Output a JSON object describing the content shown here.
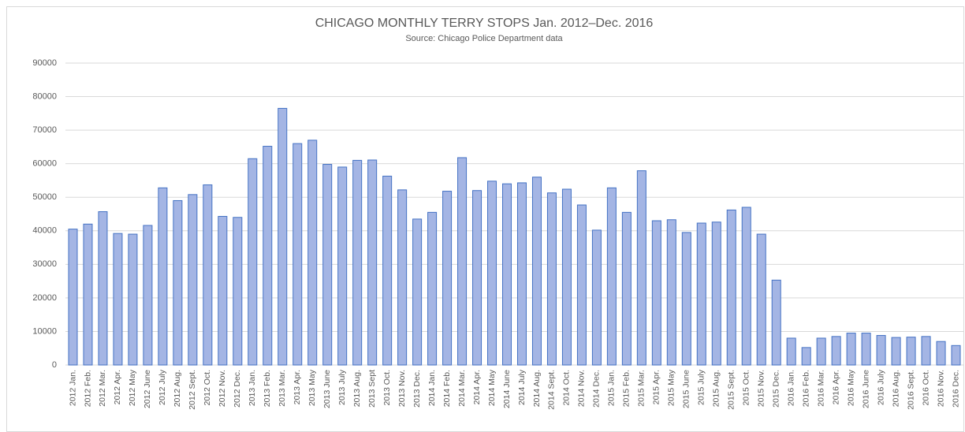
{
  "chart_data": {
    "type": "bar",
    "title": "CHICAGO  MONTHLY TERRY STOPS Jan. 2012–Dec.  2016",
    "subtitle": "Source: Chicago Police Department  data",
    "categories": [
      "2012 Jan.",
      "2012 Feb.",
      "2012 Mar.",
      "2012 Apr.",
      "2012 May",
      "2012 June",
      "2012 July",
      "2012 Aug.",
      "2012 Sept.",
      "2012 Oct.",
      "2012 Nov.",
      "2012 Dec.",
      "2013 Jan.",
      "2013 Feb.",
      "2013 Mar.",
      "2013 Apr.",
      "2013 May",
      "2013 June",
      "2013 July",
      "2013 Aug.",
      "2013 Sept",
      "2013 Oct.",
      "2013 Nov.",
      "2013 Dec.",
      "2014 Jan.",
      "2014 Feb.",
      "2014 Mar.",
      "2014 Apr.",
      "2014 May",
      "2014 June",
      "2014 July",
      "2014 Aug.",
      "2014 Sept.",
      "2014 Oct.",
      "2014 Nov.",
      "2014 Dec.",
      "2015 Jan.",
      "2015 Feb.",
      "2015 Mar.",
      "2015 Apr.",
      "2015 May",
      "2015 June",
      "2015 July",
      "2015 Aug.",
      "2015 Sept.",
      "2015 Oct.",
      "2015 Nov.",
      "2015 Dec.",
      "2016 Jan.",
      "2016 Feb.",
      "2016 Mar.",
      "2016 Apr.",
      "2016 May",
      "2016 June",
      "2016 July",
      "2016 Aug.",
      "2016 Sept.",
      "2016 Oct.",
      "2016 Nov.",
      "2016 Dec."
    ],
    "values": [
      40500,
      42000,
      45700,
      39200,
      39000,
      41600,
      52800,
      49000,
      50800,
      53700,
      44300,
      44000,
      61500,
      65200,
      76500,
      66000,
      67000,
      59800,
      59000,
      61000,
      61100,
      56300,
      52200,
      43500,
      45500,
      51800,
      61800,
      52000,
      54800,
      54000,
      54300,
      56000,
      51300,
      52400,
      47700,
      40200,
      52800,
      45500,
      57900,
      43000,
      43300,
      39500,
      42300,
      42600,
      46200,
      47000,
      39000,
      25300,
      8000,
      5200,
      8000,
      8500,
      9500,
      9500,
      8800,
      8200,
      8300,
      8500,
      7000,
      5800
    ],
    "color": "#a4b5e4",
    "ylim": [
      0,
      90000
    ],
    "yticks": [
      0,
      10000,
      20000,
      30000,
      40000,
      50000,
      60000,
      70000,
      80000,
      90000
    ],
    "grid": true
  }
}
